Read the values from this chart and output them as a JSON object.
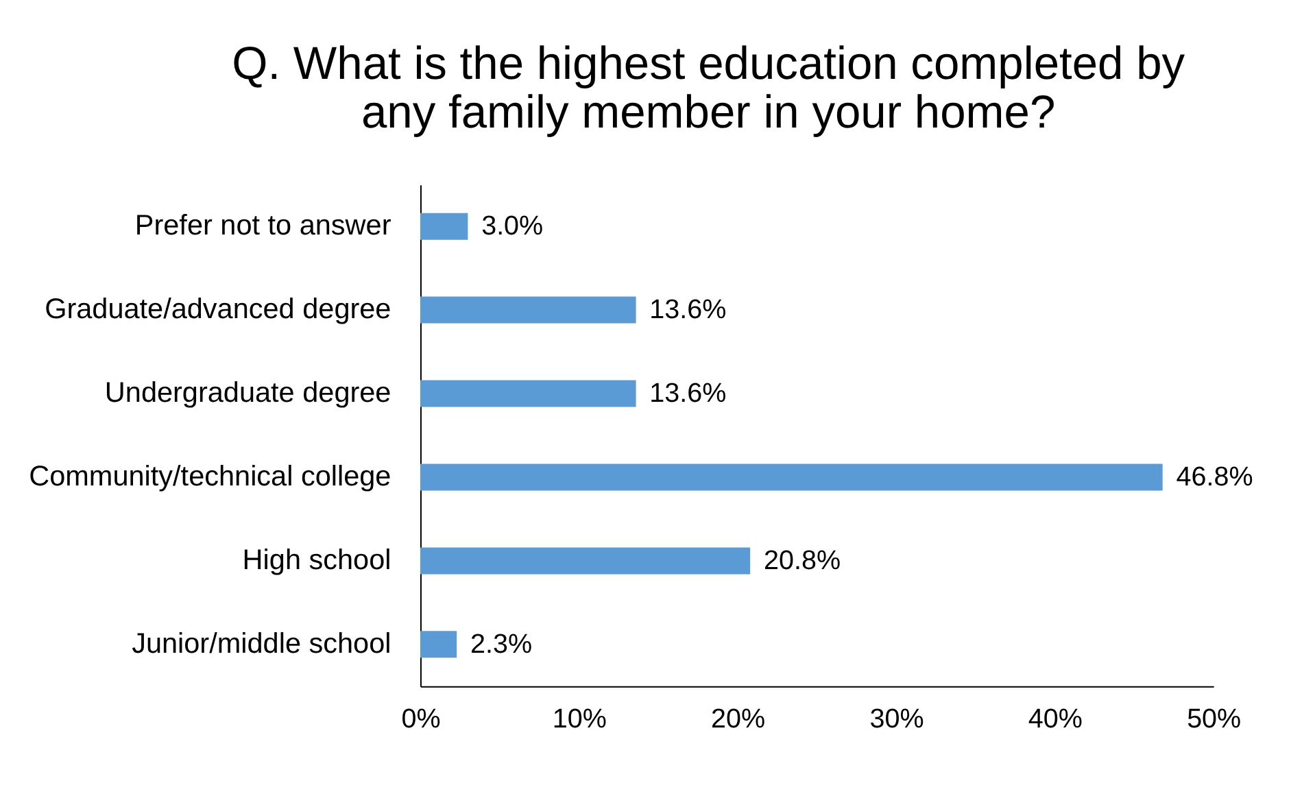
{
  "chart_data": {
    "type": "bar",
    "orientation": "horizontal",
    "title": "Q. What is the highest education completed by\nany family member in your home?",
    "categories": [
      "Prefer not to answer",
      "Graduate/advanced degree",
      "Undergraduate degree",
      "Community/technical college",
      "High school",
      "Junior/middle school"
    ],
    "values": [
      3.0,
      13.6,
      13.6,
      46.8,
      20.8,
      2.3
    ],
    "value_labels": [
      "3.0%",
      "13.6%",
      "13.6%",
      "46.8%",
      "20.8%",
      "2.3%"
    ],
    "color": "#5b9bd5",
    "xlim": [
      0,
      50
    ],
    "xticks": [
      {
        "value": 0,
        "label": "0%"
      },
      {
        "value": 10,
        "label": "10%"
      },
      {
        "value": 20,
        "label": "20%"
      },
      {
        "value": 30,
        "label": "30%"
      },
      {
        "value": 40,
        "label": "40%"
      },
      {
        "value": 50,
        "label": "50%"
      }
    ],
    "grid": false
  }
}
